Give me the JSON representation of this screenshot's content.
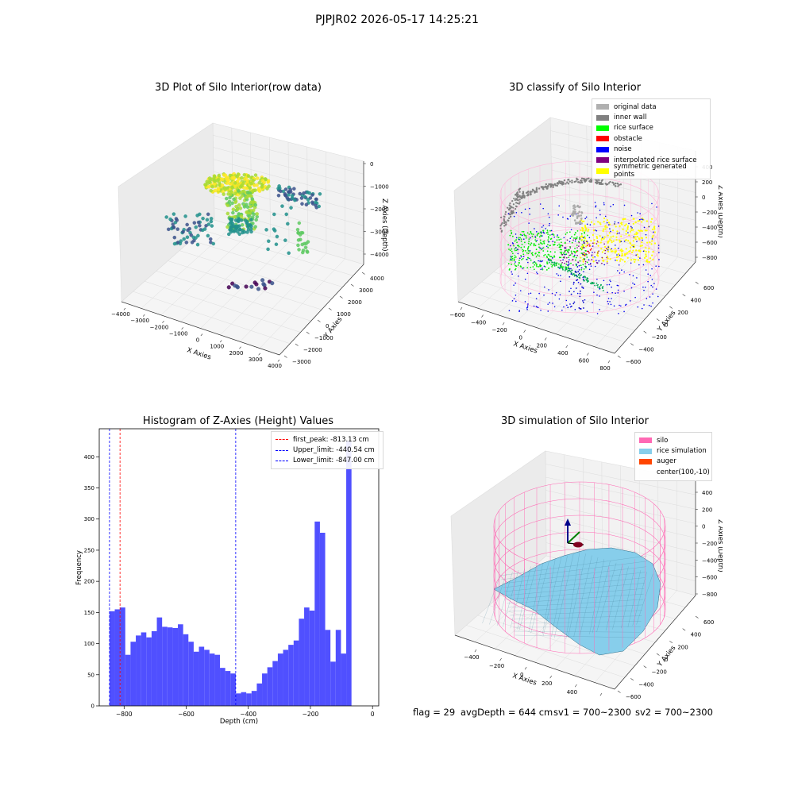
{
  "suptitle": "PJPJR02 2026-05-17 14:25:21",
  "footer": {
    "flag": "flag = 29",
    "avg_depth": "avgDepth = 644 cm",
    "sv1": "sv1 = 700~2300",
    "sv2": "sv2 = 700~2300"
  },
  "chart_data": [
    {
      "type": "scatter",
      "title": "3D Plot of Silo Interior(row data)",
      "xlabel": "X Axies",
      "ylabel": "Y Axies",
      "zlabel": "Z Axies (Depth)",
      "x_ticks": [
        "−4000",
        "−3000",
        "−2000",
        "−1000",
        "0",
        "1000",
        "2000",
        "3000",
        "4000"
      ],
      "y_ticks": [
        "−3000",
        "−2000",
        "−1000",
        "0",
        "1000",
        "2000",
        "3000",
        "4000"
      ],
      "z_ticks": [
        "0",
        "−1000",
        "−2000",
        "−3000",
        "−4000"
      ],
      "colormap": "viridis"
    },
    {
      "type": "scatter",
      "title": "3D classify of Silo Interior",
      "xlabel": "X Axies",
      "ylabel": "Y Axies",
      "zlabel": "Z Axies (Depth)",
      "x_ticks": [
        "−600",
        "−400",
        "−200",
        "0",
        "200",
        "400",
        "600",
        "800"
      ],
      "y_ticks": [
        "−600",
        "−400",
        "−200",
        "0",
        "200",
        "400",
        "600"
      ],
      "z_ticks": [
        "400",
        "200",
        "0",
        "−200",
        "−400",
        "−600",
        "−800"
      ],
      "legend": [
        {
          "label": "original data",
          "color": "#b0b0b0"
        },
        {
          "label": "inner wall",
          "color": "#808080"
        },
        {
          "label": "rice surface",
          "color": "#00ff00"
        },
        {
          "label": "obstacle",
          "color": "#ff0000"
        },
        {
          "label": "noise",
          "color": "#0000ff"
        },
        {
          "label": "interpolated rice surface",
          "color": "#800080"
        },
        {
          "label": "symmetric generated points",
          "color": "#ffff00"
        }
      ]
    },
    {
      "type": "bar",
      "title": "Histogram of Z-Axies (Height) Values",
      "xlabel": "Depth (cm)",
      "ylabel": "Frequency",
      "xlim": [
        -880,
        20
      ],
      "ylim": [
        0,
        445
      ],
      "x_ticks": [
        {
          "value": -800,
          "label": "−800"
        },
        {
          "value": -600,
          "label": "−600"
        },
        {
          "value": -400,
          "label": "−400"
        },
        {
          "value": -200,
          "label": "−200"
        },
        {
          "value": 0,
          "label": "0"
        }
      ],
      "y_ticks": [
        0,
        50,
        100,
        150,
        200,
        250,
        300,
        350,
        400
      ],
      "bin_start": -847,
      "bin_width": 16.94,
      "color": "#5050ff",
      "values": [
        152,
        155,
        158,
        82,
        103,
        113,
        118,
        110,
        120,
        142,
        127,
        126,
        125,
        131,
        115,
        103,
        87,
        95,
        90,
        84,
        82,
        61,
        56,
        52,
        20,
        22,
        20,
        24,
        36,
        52,
        62,
        72,
        84,
        90,
        98,
        105,
        140,
        158,
        153,
        296,
        278,
        122,
        71,
        122,
        84,
        425
      ],
      "lines": [
        {
          "label": "first_peak: -813.13 cm",
          "value": -813.13,
          "color": "#ff0000"
        },
        {
          "label": "Upper_limit: -440.54 cm",
          "value": -440.54,
          "color": "#0000ff"
        },
        {
          "label": "Lower_limit: -847.00 cm",
          "value": -847.0,
          "color": "#0000ff"
        }
      ]
    },
    {
      "type": "surface",
      "title": "3D simulation of Silo Interior",
      "xlabel": "X Axies",
      "ylabel": "Y Axies",
      "zlabel": "Z Axies (Depth)",
      "x_ticks": [
        "−400",
        "−200",
        "0",
        "200",
        "400",
        "600"
      ],
      "y_ticks": [
        "−600",
        "−400",
        "−200",
        "0",
        "200",
        "400",
        "600"
      ],
      "z_ticks": [
        "400",
        "200",
        "0",
        "−200",
        "−400",
        "−600",
        "−800"
      ],
      "legend": [
        {
          "label": "silo",
          "color": "#ff69b4"
        },
        {
          "label": "rice simulation",
          "color": "#87ceeb"
        },
        {
          "label": "auger",
          "color": "#ff4500"
        },
        {
          "label": "center(100,-10)",
          "color": ""
        }
      ]
    }
  ]
}
